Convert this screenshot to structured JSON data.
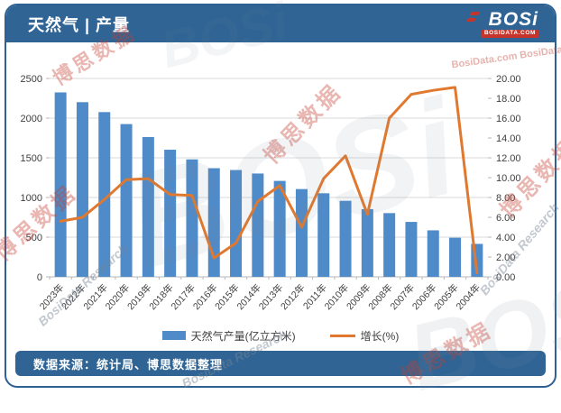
{
  "header": {
    "title": "天然气 | 产量",
    "logo": {
      "name": "BOSi",
      "domain": "BOSIDATA.COM"
    }
  },
  "footer": {
    "source": "数据来源：统计局、博思数据整理"
  },
  "watermarks": {
    "cn": "博思数据",
    "en": "BosiData Research",
    "en_domain": "BosiData.com  BosiData.com",
    "logo": "BOSi"
  },
  "colors": {
    "bar": "#4E8BC8",
    "line": "#E0792F",
    "header_bg": "#2F6494",
    "panel_border": "#2E6093",
    "grid": "#D9D9D9",
    "axis_text": "#3F3F3F",
    "logo_red": "#C7342C"
  },
  "chart_data": {
    "type": "bar",
    "title": "天然气 | 产量",
    "categories": [
      "2023年",
      "2022年",
      "2021年",
      "2020年",
      "2019年",
      "2018年",
      "2017年",
      "2016年",
      "2015年",
      "2014年",
      "2013年",
      "2012年",
      "2011年",
      "2010年",
      "2009年",
      "2008年",
      "2007年",
      "2006年",
      "2005年",
      "2004年"
    ],
    "series": [
      {
        "name": "天然气产量(亿立方米)",
        "type": "bar",
        "axis": "left",
        "values": [
          2324,
          2201,
          2076,
          1925,
          1762,
          1602,
          1480,
          1369,
          1346,
          1302,
          1209,
          1106,
          1053,
          958,
          853,
          803,
          692,
          586,
          493,
          415
        ]
      },
      {
        "name": "增长(%)",
        "type": "line",
        "axis": "right",
        "values": [
          5.6,
          6.0,
          7.8,
          9.8,
          9.9,
          8.3,
          8.2,
          1.9,
          3.4,
          7.6,
          9.2,
          5.0,
          9.9,
          12.2,
          6.3,
          16.0,
          18.4,
          18.8,
          19.1,
          0.4
        ]
      }
    ],
    "left_axis": {
      "min": 0,
      "max": 2500,
      "step": 500
    },
    "right_axis": {
      "min": 0,
      "max": 20,
      "step": 2,
      "decimals": 2
    },
    "grid": true,
    "legend_position": "bottom",
    "xlabel": "",
    "ylabel_left": "亿立方米",
    "ylabel_right": "%"
  }
}
